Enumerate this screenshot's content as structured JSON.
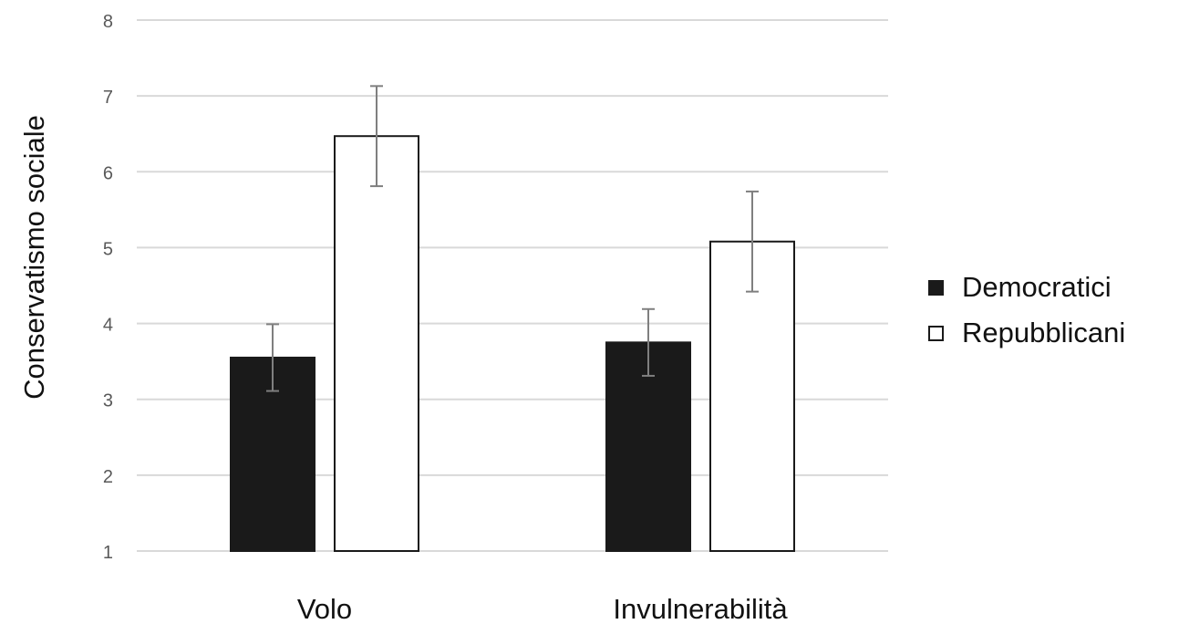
{
  "chart_data": {
    "type": "bar",
    "title": "",
    "xlabel": "",
    "ylabel": "Conservatismo sociale",
    "categories": [
      "Volo",
      "Invulnerabilità"
    ],
    "yticks": [
      "1",
      "2",
      "3",
      "4",
      "5",
      "6",
      "7",
      "8"
    ],
    "ylim": [
      1,
      8
    ],
    "grid": true,
    "legend_position": "right",
    "series": [
      {
        "name": "Democratici",
        "color": "#1a1a1a",
        "values": [
          3.55,
          3.75
        ],
        "error": [
          0.44,
          0.44
        ]
      },
      {
        "name": "Repubblicani",
        "color": "#ffffff",
        "values": [
          6.47,
          5.08
        ],
        "error": [
          0.66,
          0.66
        ]
      }
    ]
  }
}
